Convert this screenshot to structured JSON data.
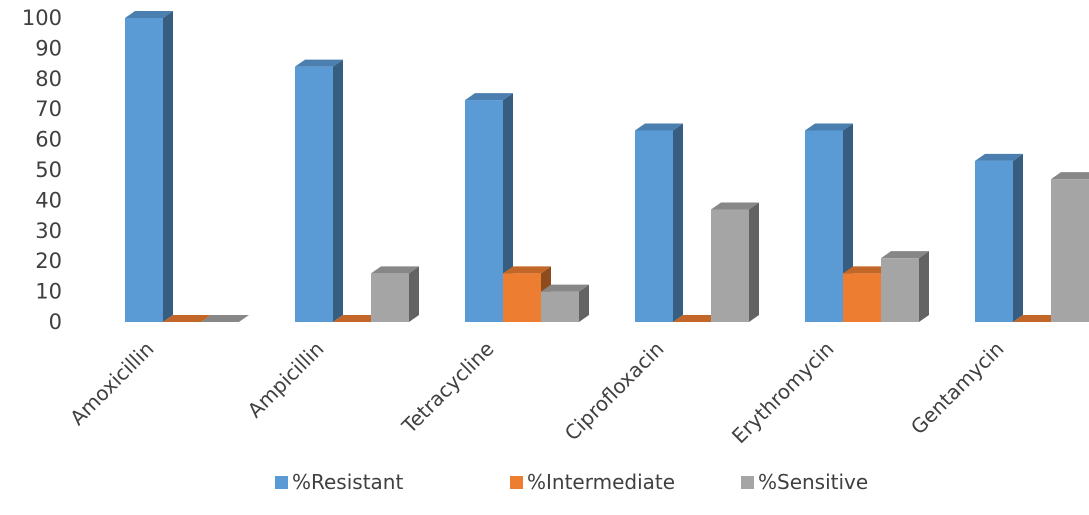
{
  "chart_data": {
    "type": "bar",
    "title": "",
    "xlabel": "",
    "ylabel": "",
    "categories": [
      "Amoxicillin",
      "Ampicillin",
      "Tetracycline",
      "Ciprofloxacin",
      "Erythromycin",
      "Gentamycin"
    ],
    "series": [
      {
        "name": "%Resistant",
        "color": "#5b9bd5",
        "values": [
          100,
          84,
          73,
          63,
          63,
          53
        ]
      },
      {
        "name": "%Intermediate",
        "color": "#ed7d31",
        "values": [
          0,
          0,
          16,
          0,
          16,
          0
        ]
      },
      {
        "name": "%Sensitive",
        "color": "#a5a5a5",
        "values": [
          0,
          16,
          10,
          37,
          21,
          47
        ]
      }
    ],
    "ylim": [
      0,
      100
    ],
    "yticks": [
      0,
      10,
      20,
      30,
      40,
      50,
      60,
      70,
      80,
      90,
      100
    ],
    "style": "3d-clustered-column",
    "grid": false,
    "legend_position": "bottom"
  }
}
